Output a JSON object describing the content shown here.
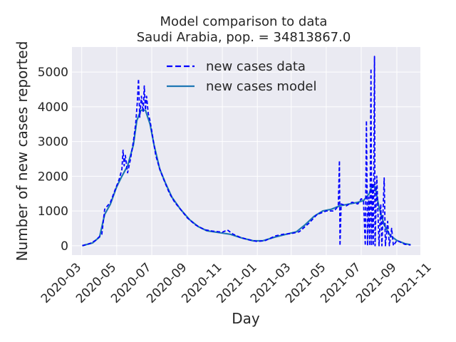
{
  "chart_data": {
    "type": "line",
    "title_line1": "Model comparison to data",
    "title_line2": "Saudi Arabia, pop. = 34813867.0",
    "xlabel": "Day",
    "ylabel": "Number of new cases reported",
    "x_axis_kind": "date",
    "xlim": [
      "2020-02-13",
      "2021-10-12"
    ],
    "ylim": [
      -270,
      5720
    ],
    "x_ticks": [
      "2020-03",
      "2020-05",
      "2020-07",
      "2020-09",
      "2020-11",
      "2021-01",
      "2021-03",
      "2021-05",
      "2021-07",
      "2021-09",
      "2021-11"
    ],
    "x_tick_dates": [
      "2020-03-01",
      "2020-05-01",
      "2020-07-01",
      "2020-09-01",
      "2020-11-01",
      "2021-01-01",
      "2021-03-01",
      "2021-05-01",
      "2021-07-01",
      "2021-09-01",
      "2021-11-01"
    ],
    "y_ticks": [
      "0",
      "1000",
      "2000",
      "3000",
      "4000",
      "5000"
    ],
    "y_tick_values": [
      0,
      1000,
      2000,
      3000,
      4000,
      5000
    ],
    "grid": true,
    "background": "#eaeaf2",
    "legend_position": "top-center",
    "legend": [
      "new cases data",
      "new cases model"
    ],
    "series": [
      {
        "name": "new cases data",
        "style": "dashed",
        "color": "#0000ff",
        "points": [
          [
            "2020-03-02",
            0
          ],
          [
            "2020-03-15",
            60
          ],
          [
            "2020-03-25",
            150
          ],
          [
            "2020-04-05",
            330
          ],
          [
            "2020-04-10",
            1050
          ],
          [
            "2020-04-20",
            1250
          ],
          [
            "2020-04-28",
            1600
          ],
          [
            "2020-05-05",
            1900
          ],
          [
            "2020-05-10",
            2200
          ],
          [
            "2020-05-12",
            2750
          ],
          [
            "2020-05-14",
            2300
          ],
          [
            "2020-05-16",
            2600
          ],
          [
            "2020-05-20",
            2100
          ],
          [
            "2020-05-25",
            2500
          ],
          [
            "2020-05-30",
            3000
          ],
          [
            "2020-06-03",
            3500
          ],
          [
            "2020-06-06",
            4150
          ],
          [
            "2020-06-08",
            4800
          ],
          [
            "2020-06-10",
            3700
          ],
          [
            "2020-06-13",
            4300
          ],
          [
            "2020-06-16",
            3850
          ],
          [
            "2020-06-18",
            4600
          ],
          [
            "2020-06-20",
            3900
          ],
          [
            "2020-06-22",
            4300
          ],
          [
            "2020-06-25",
            3800
          ],
          [
            "2020-06-28",
            3600
          ],
          [
            "2020-07-03",
            3100
          ],
          [
            "2020-07-08",
            2600
          ],
          [
            "2020-07-15",
            2200
          ],
          [
            "2020-07-22",
            1900
          ],
          [
            "2020-08-01",
            1500
          ],
          [
            "2020-08-10",
            1250
          ],
          [
            "2020-08-20",
            1050
          ],
          [
            "2020-09-01",
            800
          ],
          [
            "2020-09-15",
            600
          ],
          [
            "2020-10-01",
            460
          ],
          [
            "2020-10-15",
            420
          ],
          [
            "2020-11-01",
            390
          ],
          [
            "2020-11-10",
            450
          ],
          [
            "2020-11-20",
            330
          ],
          [
            "2020-12-01",
            250
          ],
          [
            "2020-12-15",
            180
          ],
          [
            "2021-01-01",
            120
          ],
          [
            "2021-01-15",
            150
          ],
          [
            "2021-02-01",
            280
          ],
          [
            "2021-02-15",
            330
          ],
          [
            "2021-03-01",
            350
          ],
          [
            "2021-03-15",
            400
          ],
          [
            "2021-04-01",
            650
          ],
          [
            "2021-04-15",
            900
          ],
          [
            "2021-05-01",
            1000
          ],
          [
            "2021-05-15",
            1000
          ],
          [
            "2021-05-22",
            1150
          ],
          [
            "2021-05-24",
            2450
          ],
          [
            "2021-05-25",
            0
          ],
          [
            "2021-05-27",
            1200
          ],
          [
            "2021-06-05",
            1150
          ],
          [
            "2021-06-15",
            1250
          ],
          [
            "2021-06-25",
            1200
          ],
          [
            "2021-07-01",
            1350
          ],
          [
            "2021-07-05",
            1300
          ],
          [
            "2021-07-08",
            0
          ],
          [
            "2021-07-10",
            3600
          ],
          [
            "2021-07-12",
            0
          ],
          [
            "2021-07-14",
            1400
          ],
          [
            "2021-07-16",
            0
          ],
          [
            "2021-07-18",
            5100
          ],
          [
            "2021-07-19",
            0
          ],
          [
            "2021-07-21",
            1800
          ],
          [
            "2021-07-22",
            0
          ],
          [
            "2021-07-24",
            5450
          ],
          [
            "2021-07-25",
            0
          ],
          [
            "2021-07-28",
            2000
          ],
          [
            "2021-08-01",
            0
          ],
          [
            "2021-08-04",
            1200
          ],
          [
            "2021-08-06",
            0
          ],
          [
            "2021-08-10",
            1950
          ],
          [
            "2021-08-12",
            0
          ],
          [
            "2021-08-16",
            700
          ],
          [
            "2021-08-19",
            0
          ],
          [
            "2021-08-23",
            500
          ],
          [
            "2021-08-26",
            0
          ],
          [
            "2021-09-01",
            150
          ],
          [
            "2021-09-15",
            40
          ],
          [
            "2021-09-25",
            20
          ]
        ]
      },
      {
        "name": "new cases model",
        "style": "solid",
        "color": "#1f77b4",
        "points": [
          [
            "2020-03-02",
            0
          ],
          [
            "2020-03-20",
            80
          ],
          [
            "2020-04-01",
            250
          ],
          [
            "2020-04-10",
            900
          ],
          [
            "2020-04-20",
            1200
          ],
          [
            "2020-05-01",
            1700
          ],
          [
            "2020-05-10",
            2000
          ],
          [
            "2020-05-20",
            2300
          ],
          [
            "2020-05-30",
            2900
          ],
          [
            "2020-06-05",
            3600
          ],
          [
            "2020-06-12",
            3900
          ],
          [
            "2020-06-20",
            3900
          ],
          [
            "2020-06-28",
            3500
          ],
          [
            "2020-07-05",
            2900
          ],
          [
            "2020-07-15",
            2200
          ],
          [
            "2020-07-25",
            1800
          ],
          [
            "2020-08-05",
            1400
          ],
          [
            "2020-08-20",
            1050
          ],
          [
            "2020-09-05",
            750
          ],
          [
            "2020-09-20",
            550
          ],
          [
            "2020-10-05",
            430
          ],
          [
            "2020-10-25",
            380
          ],
          [
            "2020-11-15",
            330
          ],
          [
            "2020-12-05",
            220
          ],
          [
            "2020-12-25",
            140
          ],
          [
            "2021-01-10",
            140
          ],
          [
            "2021-02-01",
            250
          ],
          [
            "2021-02-20",
            330
          ],
          [
            "2021-03-10",
            400
          ],
          [
            "2021-03-25",
            600
          ],
          [
            "2021-04-10",
            850
          ],
          [
            "2021-04-25",
            1000
          ],
          [
            "2021-05-10",
            1050
          ],
          [
            "2021-05-25",
            1150
          ],
          [
            "2021-06-10",
            1200
          ],
          [
            "2021-06-25",
            1250
          ],
          [
            "2021-07-05",
            1300
          ],
          [
            "2021-07-15",
            1500
          ],
          [
            "2021-07-20",
            1750
          ],
          [
            "2021-07-25",
            1700
          ],
          [
            "2021-08-01",
            1100
          ],
          [
            "2021-08-10",
            600
          ],
          [
            "2021-08-20",
            300
          ],
          [
            "2021-09-01",
            150
          ],
          [
            "2021-09-15",
            60
          ],
          [
            "2021-09-25",
            30
          ]
        ]
      }
    ]
  }
}
